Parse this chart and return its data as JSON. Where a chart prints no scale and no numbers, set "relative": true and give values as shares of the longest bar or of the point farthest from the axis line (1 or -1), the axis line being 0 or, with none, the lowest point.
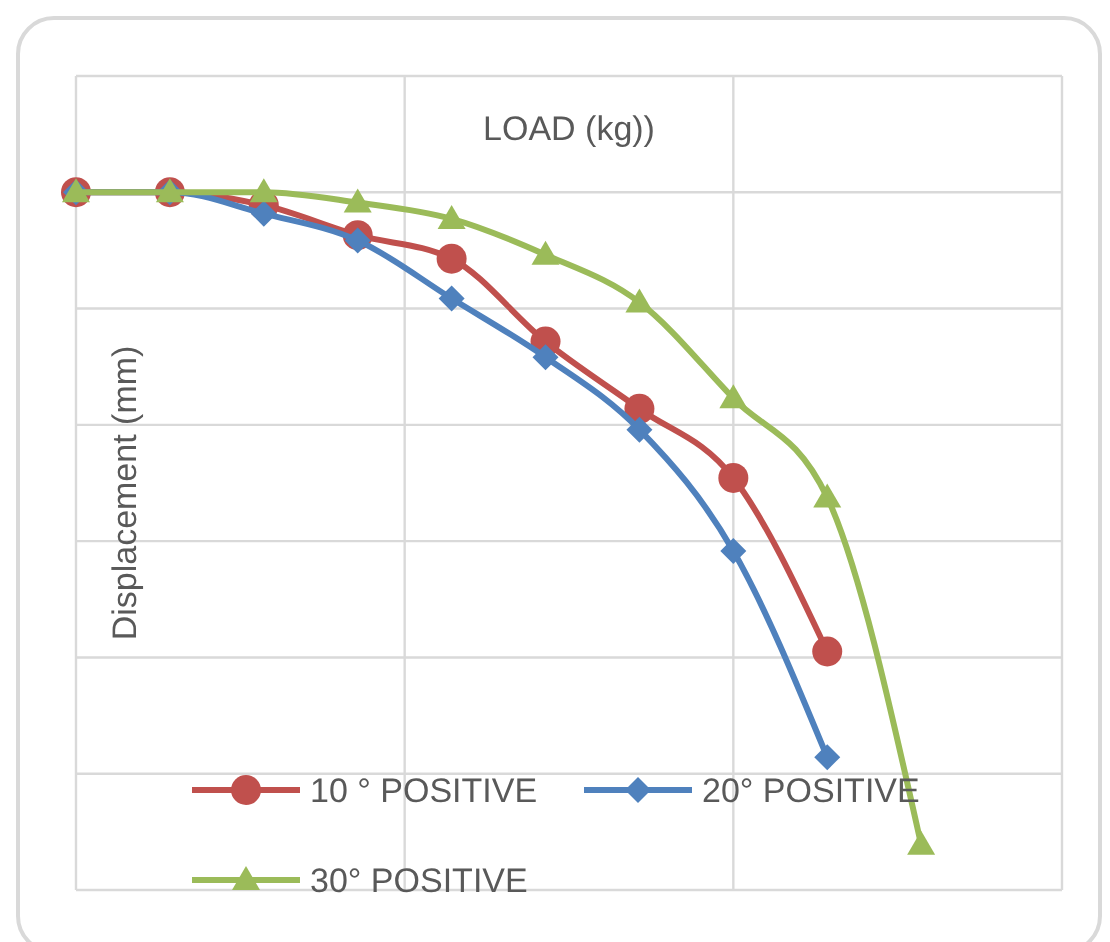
{
  "chart_data": {
    "type": "line",
    "relative": true,
    "title": "LOAD (kg))",
    "ylabel": "Displacement (mm)",
    "categories": [
      null,
      null,
      null,
      null,
      null,
      null,
      null,
      null,
      null,
      null
    ],
    "grid": true,
    "legend": "bottom",
    "series": [
      {
        "name": "10 ° POSITIVE",
        "color": "#c0504d",
        "marker": "circle",
        "values": [
          0,
          0,
          -0.02,
          -0.066,
          -0.102,
          -0.229,
          -0.332,
          -0.438,
          -0.704,
          null
        ]
      },
      {
        "name": "20° POSITIVE",
        "color": "#4f81bd",
        "marker": "diamond",
        "values": [
          0,
          0,
          -0.033,
          -0.074,
          -0.163,
          -0.253,
          -0.364,
          -0.55,
          -0.866,
          null
        ]
      },
      {
        "name": "30° POSITIVE",
        "color": "#9bbb59",
        "marker": "triangle",
        "values": [
          0,
          0,
          0,
          -0.016,
          -0.041,
          -0.096,
          -0.169,
          -0.316,
          -0.468,
          -1
        ]
      }
    ]
  }
}
